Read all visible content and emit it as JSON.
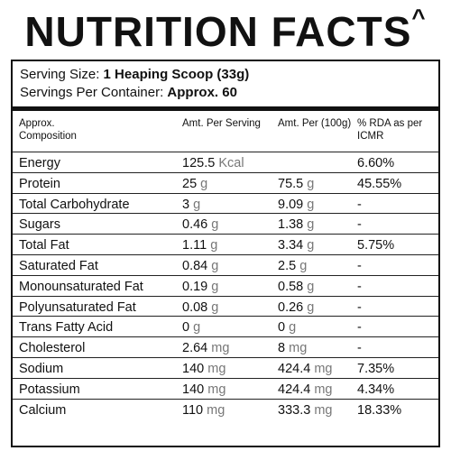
{
  "header": {
    "title": "NUTRITION FACTS",
    "mark": "^"
  },
  "serving": {
    "size_label": "Serving Size:",
    "size_value": "1 Heaping Scoop (33g)",
    "container_label": "Servings Per Container:",
    "container_value": "Approx. 60"
  },
  "table": {
    "columns": [
      "Approx. Composition",
      "Amt. Per Serving",
      "Amt. Per (100g)",
      "% RDA as per ICMR"
    ],
    "rows": [
      {
        "name": "Energy",
        "serving": {
          "amount": "125.5",
          "unit": "Kcal"
        },
        "rda": "6.60%"
      },
      {
        "name": "Protein",
        "serving": {
          "amount": "25",
          "unit": "g"
        },
        "per100g": {
          "amount": "75.5",
          "unit": "g"
        },
        "rda": "45.55%"
      },
      {
        "name": "Total Carbohydrate",
        "serving": {
          "amount": "3",
          "unit": "g"
        },
        "per100g": {
          "amount": "9.09",
          "unit": "g"
        },
        "rda": "-"
      },
      {
        "name": "Sugars",
        "serving": {
          "amount": "0.46",
          "unit": "g"
        },
        "per100g": {
          "amount": "1.38",
          "unit": "g"
        },
        "rda": "-"
      },
      {
        "name": "Total Fat",
        "serving": {
          "amount": "1.11",
          "unit": "g"
        },
        "per100g": {
          "amount": "3.34",
          "unit": "g"
        },
        "rda": "5.75%"
      },
      {
        "name": "Saturated Fat",
        "serving": {
          "amount": "0.84",
          "unit": "g"
        },
        "per100g": {
          "amount": "2.5",
          "unit": "g"
        },
        "rda": "-"
      },
      {
        "name": "Monounsaturated Fat",
        "serving": {
          "amount": "0.19",
          "unit": "g"
        },
        "per100g": {
          "amount": "0.58",
          "unit": "g"
        },
        "rda": "-"
      },
      {
        "name": "Polyunsaturated Fat",
        "serving": {
          "amount": "0.08",
          "unit": "g"
        },
        "per100g": {
          "amount": "0.26",
          "unit": "g"
        },
        "rda": "-"
      },
      {
        "name": "Trans Fatty Acid",
        "serving": {
          "amount": "0",
          "unit": "g"
        },
        "per100g": {
          "amount": "0",
          "unit": "g"
        },
        "rda": "-"
      },
      {
        "name": "Cholesterol",
        "serving": {
          "amount": "2.64",
          "unit": "mg"
        },
        "per100g": {
          "amount": "8",
          "unit": "mg"
        },
        "rda": "-"
      },
      {
        "name": "Sodium",
        "serving": {
          "amount": "140",
          "unit": "mg"
        },
        "per100g": {
          "amount": "424.4",
          "unit": "mg"
        },
        "rda": "7.35%"
      },
      {
        "name": "Potassium",
        "serving": {
          "amount": "140",
          "unit": "mg"
        },
        "per100g": {
          "amount": "424.4",
          "unit": "mg"
        },
        "rda": "4.34%"
      },
      {
        "name": "Calcium",
        "serving": {
          "amount": "110",
          "unit": "mg"
        },
        "per100g": {
          "amount": "333.3",
          "unit": "mg"
        },
        "rda": "18.33%"
      }
    ]
  }
}
